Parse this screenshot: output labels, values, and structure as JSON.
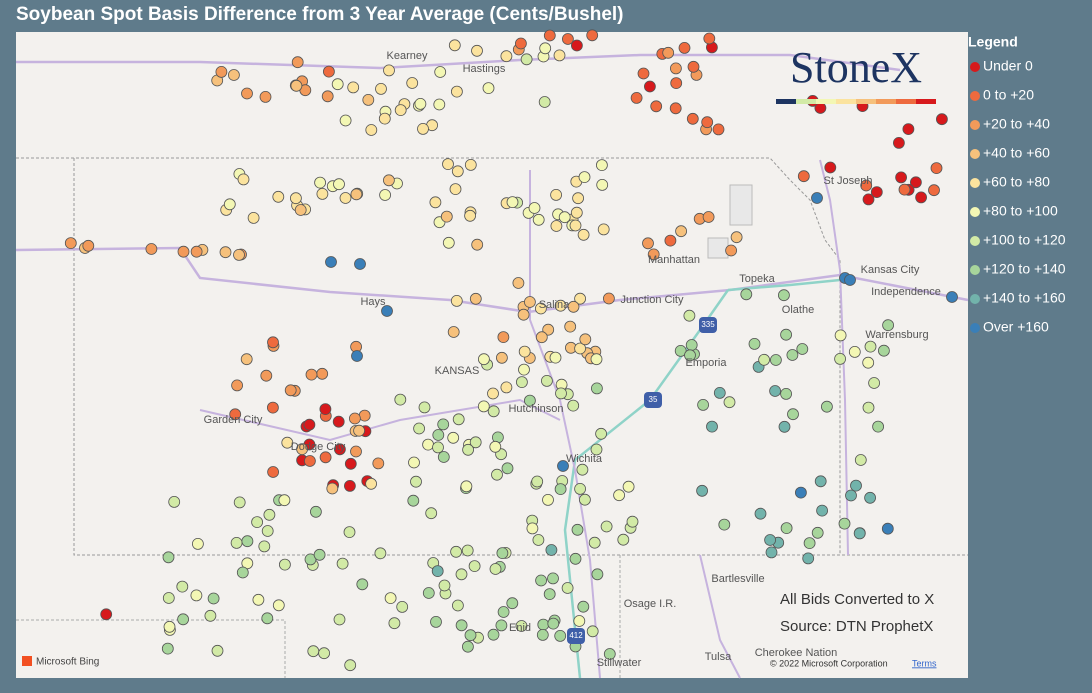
{
  "header": {
    "title": "Soybean Spot Basis Difference from 3 Year Average (Cents/Bushel)"
  },
  "legend": {
    "title": "Legend",
    "items": [
      {
        "label": "Under 0",
        "color": "#d7191c"
      },
      {
        "label": "0 to +20",
        "color": "#ee6a3e"
      },
      {
        "label": "+20 to +40",
        "color": "#f29a5a"
      },
      {
        "label": "+40 to +60",
        "color": "#f6c17c"
      },
      {
        "label": "+60 to +80",
        "color": "#fbe39e"
      },
      {
        "label": "+80 to +100",
        "color": "#f3f7b4"
      },
      {
        "label": "+100 to +120",
        "color": "#d2eaa6"
      },
      {
        "label": "+120 to +140",
        "color": "#a7d59b"
      },
      {
        "label": "+140 to +160",
        "color": "#72b3ab"
      },
      {
        "label": "Over +160",
        "color": "#3a7fb8"
      }
    ]
  },
  "logo": "StoneX",
  "map": {
    "labels": [
      "Kearney",
      "Hastings",
      "St Joseph",
      "Manhattan",
      "Kansas City",
      "Independence",
      "Topeka",
      "Junction City",
      "Salina",
      "Hays",
      "Olathe",
      "Warrensburg",
      "KANSAS",
      "Emporia",
      "Garden City",
      "Dodge City",
      "Hutchinson",
      "Wichita",
      "Bartlesville",
      "Osage I.R.",
      "Enid",
      "Stillwater",
      "Tulsa",
      "Cherokee Nation"
    ],
    "shields": [
      "335",
      "35",
      "412"
    ]
  },
  "notes": [
    "All Bids Converted to X",
    "Source: DTN ProphetX"
  ],
  "attribution": {
    "bing": "Microsoft Bing",
    "copyright": "© 2022 Microsoft Corporation",
    "terms": "Terms"
  }
}
